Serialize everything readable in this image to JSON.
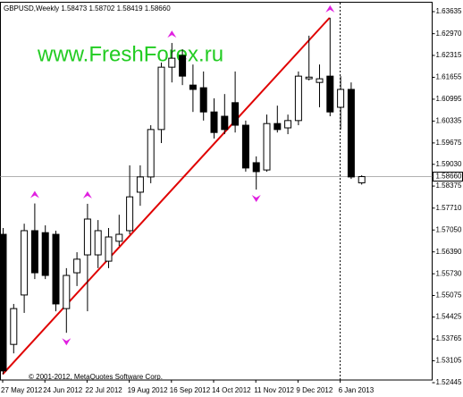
{
  "chart_data": {
    "type": "candlestick",
    "title": "GBPUSD,Weekly  1.58473 1.58702 1.58419 1.58660",
    "watermark": "www.FreshForex.ru",
    "annotation": "© 2001-2012, MetaQuotes Software Corp.",
    "categories": [
      "27 May 2012",
      null,
      null,
      null,
      "24 Jun 2012",
      null,
      null,
      null,
      "22 Jul 2012",
      null,
      null,
      null,
      "19 Aug 2012",
      null,
      null,
      null,
      "16 Sep 2012",
      null,
      null,
      null,
      "14 Oct 2012",
      null,
      null,
      null,
      "11 Nov 2012",
      null,
      null,
      null,
      "9 Dec 2012",
      null,
      null,
      null,
      "6 Jan 2013",
      null,
      null
    ],
    "open": [
      1.5692,
      1.536,
      1.5509,
      1.5703,
      1.5697,
      1.5692,
      1.5468,
      1.5576,
      1.563,
      1.563,
      1.5611,
      1.5671,
      1.5703,
      1.5819,
      1.5865,
      1.6008,
      1.6196,
      1.6231,
      1.6142,
      1.6134,
      1.6061,
      1.6048,
      1.6089,
      1.6021,
      1.5908,
      1.5886,
      1.6026,
      1.6013,
      1.6035,
      1.6161,
      1.615,
      1.6169,
      1.6075,
      1.6129,
      1.58473
    ],
    "high": [
      1.5711,
      1.5482,
      1.5724,
      1.5785,
      1.5719,
      1.5703,
      1.559,
      1.5638,
      1.5784,
      1.5735,
      1.5711,
      1.5751,
      1.59,
      1.59,
      1.6021,
      1.621,
      1.6269,
      1.625,
      1.6204,
      1.6183,
      1.6102,
      1.6115,
      1.6183,
      1.6035,
      1.5927,
      1.6053,
      1.608,
      1.6053,
      1.6183,
      1.6291,
      1.6204,
      1.6345,
      1.6169,
      1.615,
      1.58702
    ],
    "low": [
      1.527,
      1.5333,
      1.5455,
      1.5557,
      1.5557,
      1.546,
      1.5395,
      1.5536,
      1.546,
      1.559,
      1.559,
      1.5657,
      1.5692,
      1.5778,
      1.5846,
      1.5967,
      1.615,
      1.6142,
      1.6061,
      1.6035,
      1.5981,
      1.5994,
      1.5999,
      1.5881,
      1.5827,
      1.5881,
      1.5999,
      1.5994,
      1.6021,
      1.6156,
      1.6075,
      1.6048,
      1.6008,
      1.5859,
      1.58419
    ],
    "close": [
      1.528,
      1.5468,
      1.5703,
      1.5576,
      1.5568,
      1.5482,
      1.5568,
      1.5617,
      1.5738,
      1.5703,
      1.5684,
      1.5692,
      1.5805,
      1.5865,
      1.6008,
      1.6196,
      1.6223,
      1.6169,
      1.6129,
      1.6061,
      1.5999,
      1.6008,
      1.6021,
      1.5892,
      1.5881,
      1.6026,
      1.6008,
      1.6035,
      1.6169,
      1.6166,
      1.6161,
      1.6061,
      1.6129,
      1.5865,
      1.5866
    ],
    "up_color": "#ffffff",
    "down_color": "#000000",
    "fractals_up": [
      3,
      8,
      16,
      31
    ],
    "fractals_down": [
      6,
      24
    ],
    "fractal_color": "#e020e0",
    "trendline_from": 0,
    "trendline_to": 31,
    "trendline_color": "#e00000",
    "separator_at": 32,
    "price_label": {
      "value": 1.5866,
      "label": "1.58660"
    },
    "ylim": [
      1.52526,
      1.63986
    ],
    "yticks": [
      {
        "value": 1.63635,
        "label": "1.63635"
      },
      {
        "value": 1.6297,
        "label": "1.62970"
      },
      {
        "value": 1.62315,
        "label": "1.62315"
      },
      {
        "value": 1.61655,
        "label": "1.61655"
      },
      {
        "value": 1.60995,
        "label": "1.60995"
      },
      {
        "value": 1.60335,
        "label": "1.60335"
      },
      {
        "value": 1.59675,
        "label": "1.59675"
      },
      {
        "value": 1.5903,
        "label": "1.59030"
      },
      {
        "value": 1.58375,
        "label": "1.58375"
      },
      {
        "value": 1.5771,
        "label": "1.57710"
      },
      {
        "value": 1.5705,
        "label": "1.57050"
      },
      {
        "value": 1.5639,
        "label": "1.56390"
      },
      {
        "value": 1.5573,
        "label": "1.55730"
      },
      {
        "value": 1.55075,
        "label": "1.55075"
      },
      {
        "value": 1.54425,
        "label": "1.54425"
      },
      {
        "value": 1.53765,
        "label": "1.53765"
      },
      {
        "value": 1.53105,
        "label": "1.53105"
      },
      {
        "value": 1.52445,
        "label": "1.52445"
      }
    ]
  }
}
